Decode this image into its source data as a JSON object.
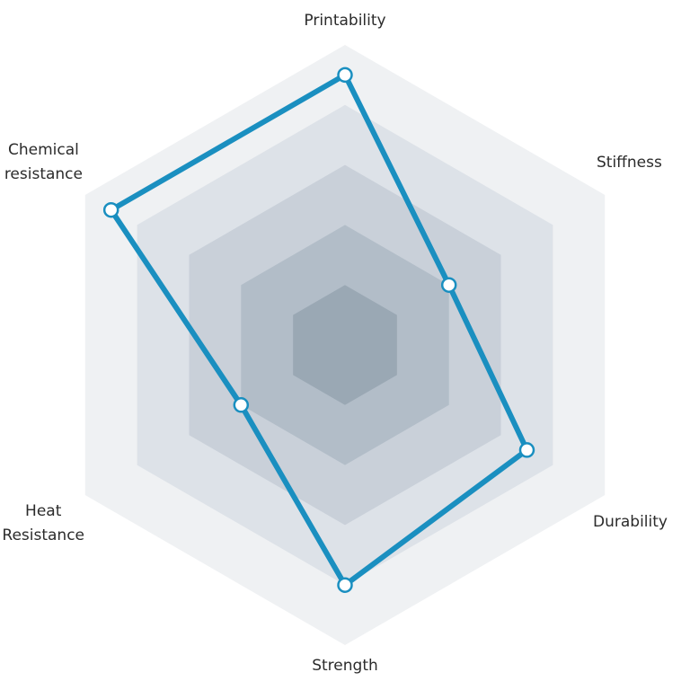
{
  "chart_data": {
    "type": "radar",
    "axes": [
      "Printability",
      "Stiffness",
      "Durability",
      "Strength",
      "Heat Resistance",
      "Chemical resistance"
    ],
    "axis_labels": {
      "printability": "Printability",
      "stiffness": "Stiffness",
      "durability": "Durability",
      "strength": "Strength",
      "heat": "Heat\nResistance",
      "chemical": "Chemical\nresistance"
    },
    "range": [
      0,
      5
    ],
    "levels": 5,
    "series": [
      {
        "values": [
          4.5,
          2.0,
          3.5,
          4.0,
          2.0,
          4.5
        ]
      }
    ],
    "colors": {
      "series_line": "#1a8fc0",
      "marker_fill": "#ffffff",
      "rings": [
        "#eff1f3",
        "#dde2e8",
        "#c9d0d9",
        "#b2bdc8",
        "#9aa8b4"
      ]
    },
    "grid": true,
    "legend": "none"
  }
}
